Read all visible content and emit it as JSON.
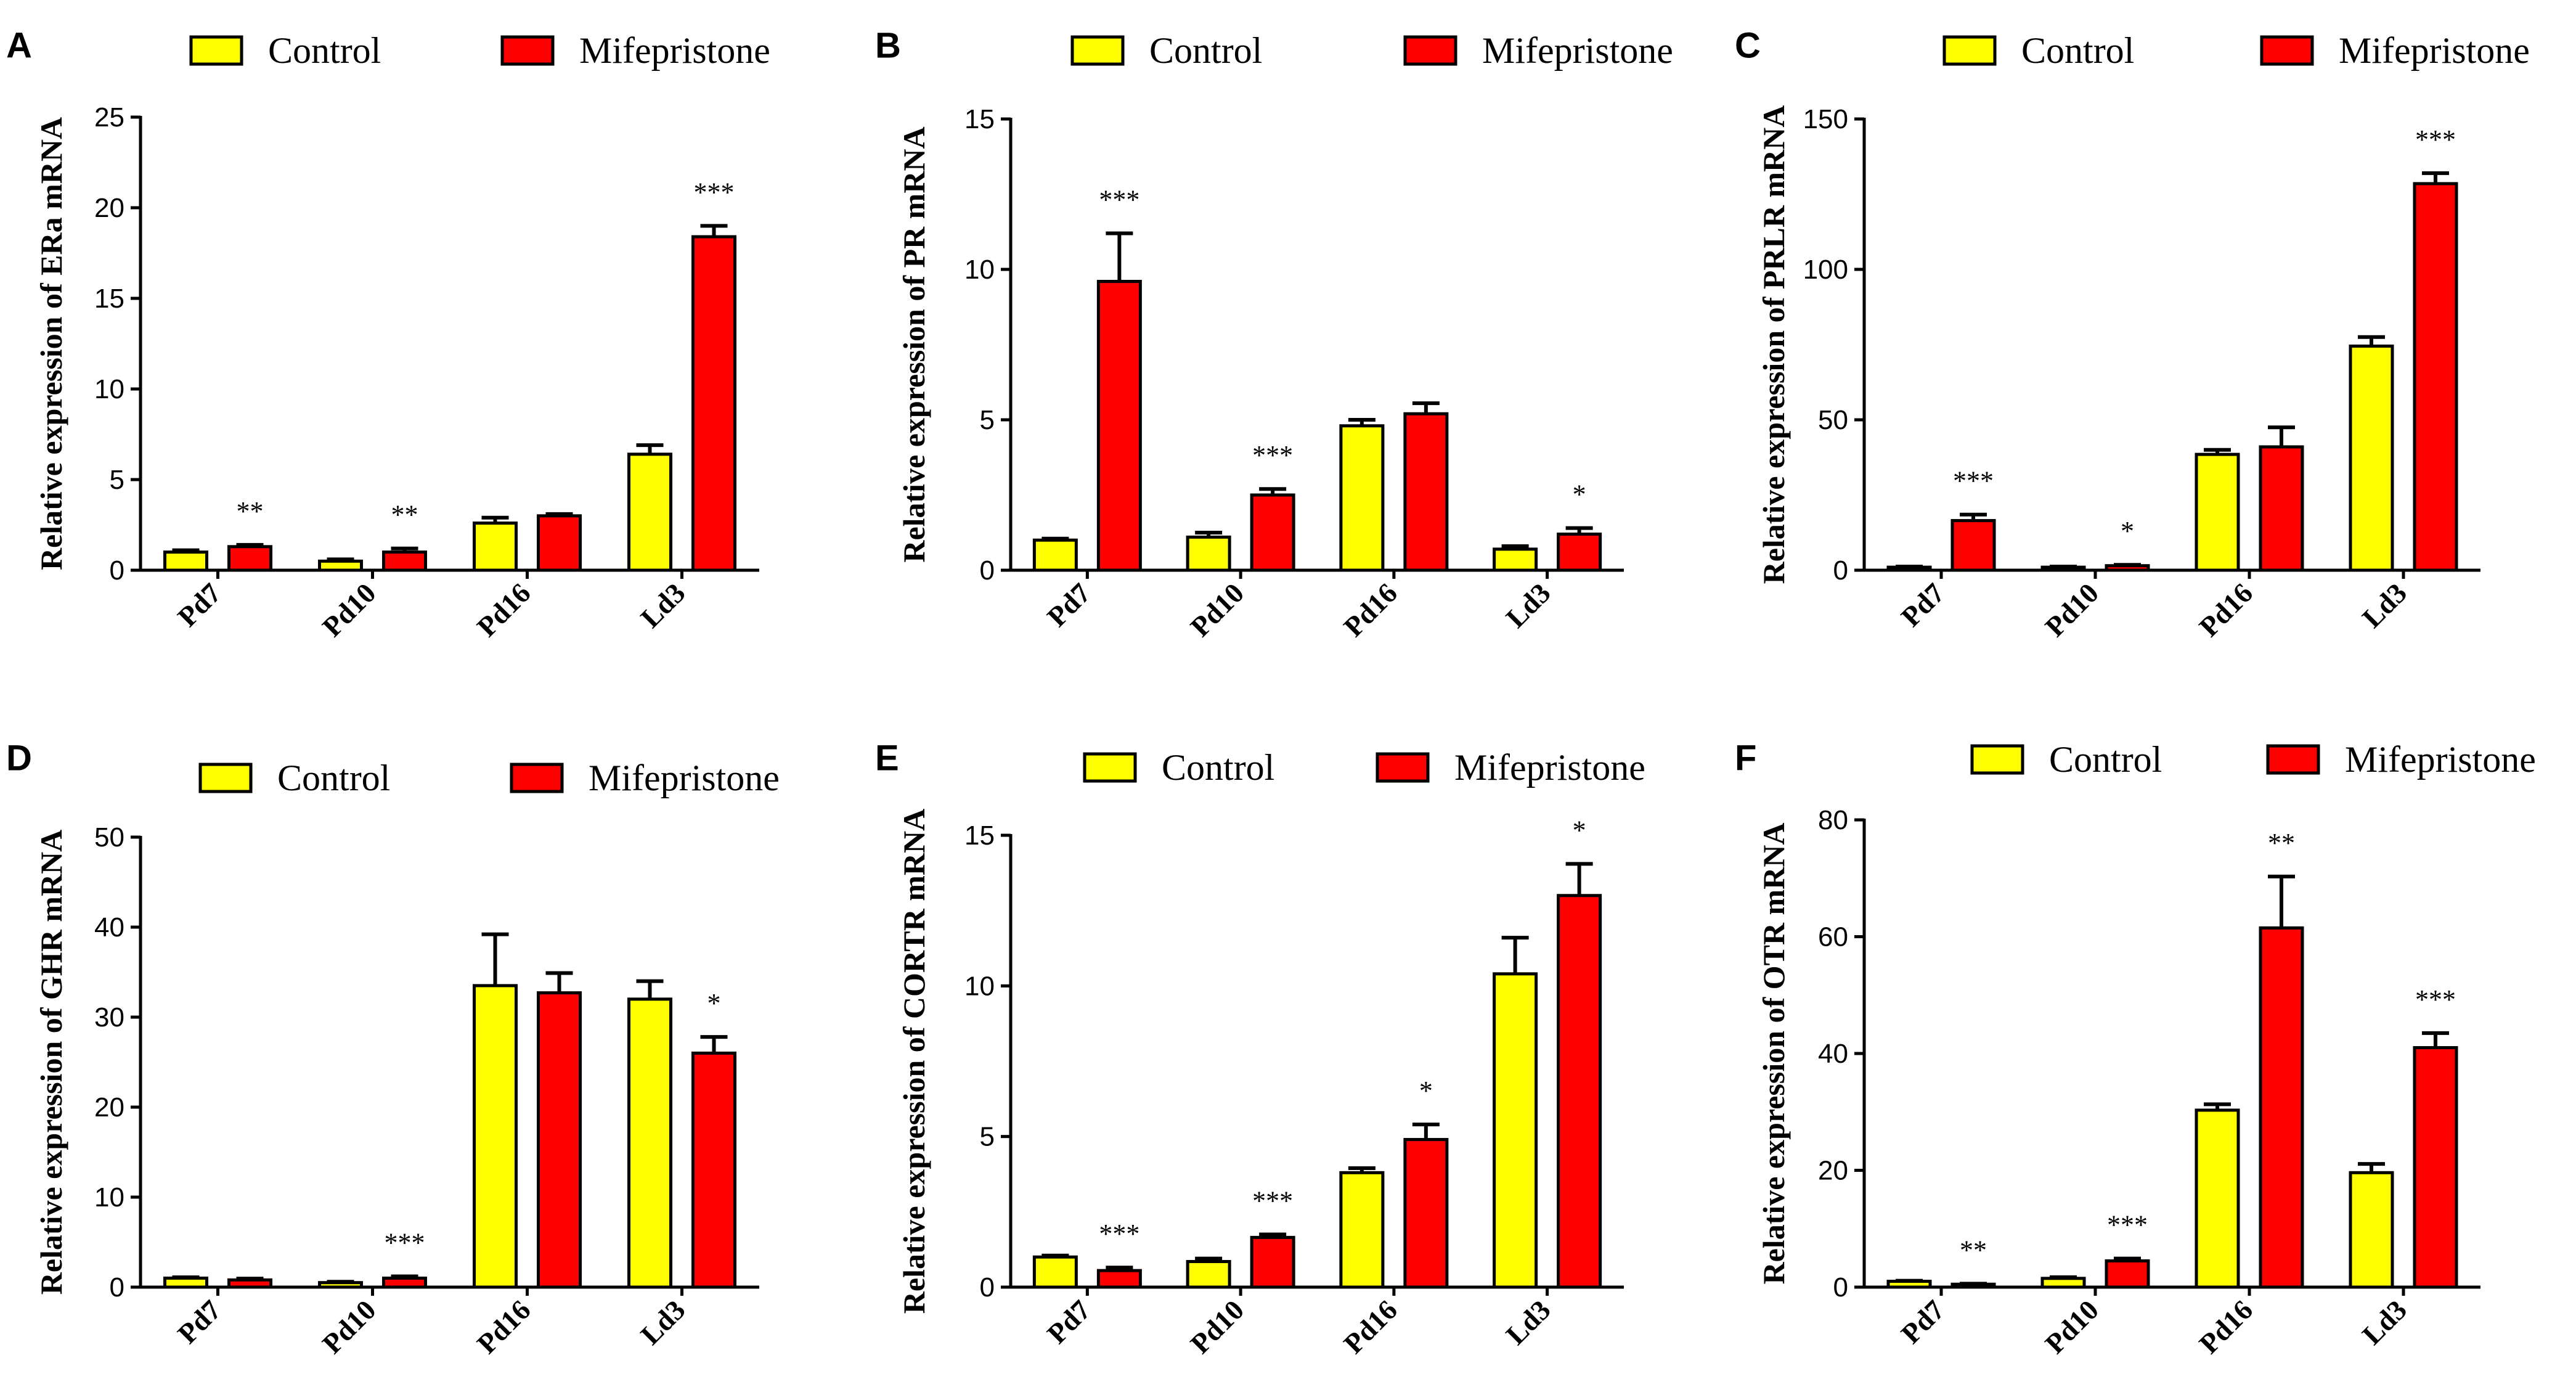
{
  "colors": {
    "control": "#ffff00",
    "mifepristone": "#ff0000",
    "stroke": "#000000"
  },
  "legend": [
    "Control",
    "Mifepristone"
  ],
  "chart_data": [
    {
      "panel": "A",
      "type": "bar",
      "ylabel": "Relative expression of ERa mRNA",
      "categories": [
        "Pd7",
        "Pd10",
        "Pd16",
        "Ld3"
      ],
      "ylim": [
        0,
        25
      ],
      "yticks": [
        0,
        5,
        10,
        15,
        20,
        25
      ],
      "series": [
        {
          "name": "Control",
          "values": [
            1.0,
            0.5,
            2.6,
            6.4
          ],
          "errors": [
            0.1,
            0.1,
            0.3,
            0.5
          ]
        },
        {
          "name": "Mifepristone",
          "values": [
            1.3,
            1.0,
            3.0,
            18.4
          ],
          "errors": [
            0.1,
            0.2,
            0.1,
            0.6
          ]
        }
      ],
      "significance": [
        "**",
        "**",
        "",
        "***"
      ]
    },
    {
      "panel": "B",
      "type": "bar",
      "ylabel": "Relative expression of PR mRNA",
      "categories": [
        "Pd7",
        "Pd10",
        "Pd16",
        "Ld3"
      ],
      "ylim": [
        0,
        15
      ],
      "yticks": [
        0,
        5,
        10,
        15
      ],
      "series": [
        {
          "name": "Control",
          "values": [
            1.0,
            1.1,
            4.8,
            0.7
          ],
          "errors": [
            0.05,
            0.15,
            0.2,
            0.1
          ]
        },
        {
          "name": "Mifepristone",
          "values": [
            9.6,
            2.5,
            5.2,
            1.2
          ],
          "errors": [
            1.6,
            0.2,
            0.35,
            0.2
          ]
        }
      ],
      "significance": [
        "***",
        "***",
        "",
        "*"
      ]
    },
    {
      "panel": "C",
      "type": "bar",
      "ylabel": "Relative expression of PRLR mRNA",
      "categories": [
        "Pd7",
        "Pd10",
        "Pd16",
        "Ld3"
      ],
      "ylim": [
        0,
        150
      ],
      "yticks": [
        0,
        50,
        100,
        150
      ],
      "series": [
        {
          "name": "Control",
          "values": [
            1.0,
            1.0,
            38.5,
            74.5
          ],
          "errors": [
            0.2,
            0.2,
            1.5,
            3.0
          ]
        },
        {
          "name": "Mifepristone",
          "values": [
            16.5,
            1.5,
            41.0,
            128.5
          ],
          "errors": [
            2.0,
            0.3,
            6.5,
            3.5
          ]
        }
      ],
      "significance": [
        "***",
        "*",
        "",
        "***"
      ]
    },
    {
      "panel": "D",
      "type": "bar",
      "ylabel": "Relative expression of GHR mRNA",
      "categories": [
        "Pd7",
        "Pd10",
        "Pd16",
        "Ld3"
      ],
      "ylim": [
        0,
        50
      ],
      "yticks": [
        0,
        10,
        20,
        30,
        40,
        50
      ],
      "series": [
        {
          "name": "Control",
          "values": [
            1.0,
            0.5,
            33.5,
            32.0
          ],
          "errors": [
            0.1,
            0.1,
            5.7,
            2.0
          ]
        },
        {
          "name": "Mifepristone",
          "values": [
            0.8,
            1.0,
            32.7,
            26.0
          ],
          "errors": [
            0.15,
            0.2,
            2.2,
            1.8
          ]
        }
      ],
      "significance": [
        "",
        "***",
        "",
        "*"
      ]
    },
    {
      "panel": "E",
      "type": "bar",
      "ylabel": "Relative expression of CORTR mRNA",
      "categories": [
        "Pd7",
        "Pd10",
        "Pd16",
        "Ld3"
      ],
      "ylim": [
        0,
        15
      ],
      "yticks": [
        0,
        5,
        10,
        15
      ],
      "series": [
        {
          "name": "Control",
          "values": [
            1.0,
            0.85,
            3.8,
            10.4
          ],
          "errors": [
            0.05,
            0.1,
            0.15,
            1.2
          ]
        },
        {
          "name": "Mifepristone",
          "values": [
            0.55,
            1.65,
            4.9,
            13.0
          ],
          "errors": [
            0.1,
            0.1,
            0.5,
            1.05
          ]
        }
      ],
      "significance": [
        "***",
        "***",
        "*",
        "*"
      ]
    },
    {
      "panel": "F",
      "type": "bar",
      "ylabel": "Relative expression of OTR mRNA",
      "categories": [
        "Pd7",
        "Pd10",
        "Pd16",
        "Ld3"
      ],
      "ylim": [
        0,
        80
      ],
      "yticks": [
        0,
        20,
        40,
        60,
        80
      ],
      "series": [
        {
          "name": "Control",
          "values": [
            1.0,
            1.5,
            30.3,
            19.6
          ],
          "errors": [
            0.1,
            0.2,
            1.0,
            1.5
          ]
        },
        {
          "name": "Mifepristone",
          "values": [
            0.5,
            4.5,
            61.5,
            41.0
          ],
          "errors": [
            0.1,
            0.4,
            8.8,
            2.5
          ]
        }
      ],
      "significance": [
        "**",
        "***",
        "**",
        "***"
      ]
    }
  ]
}
